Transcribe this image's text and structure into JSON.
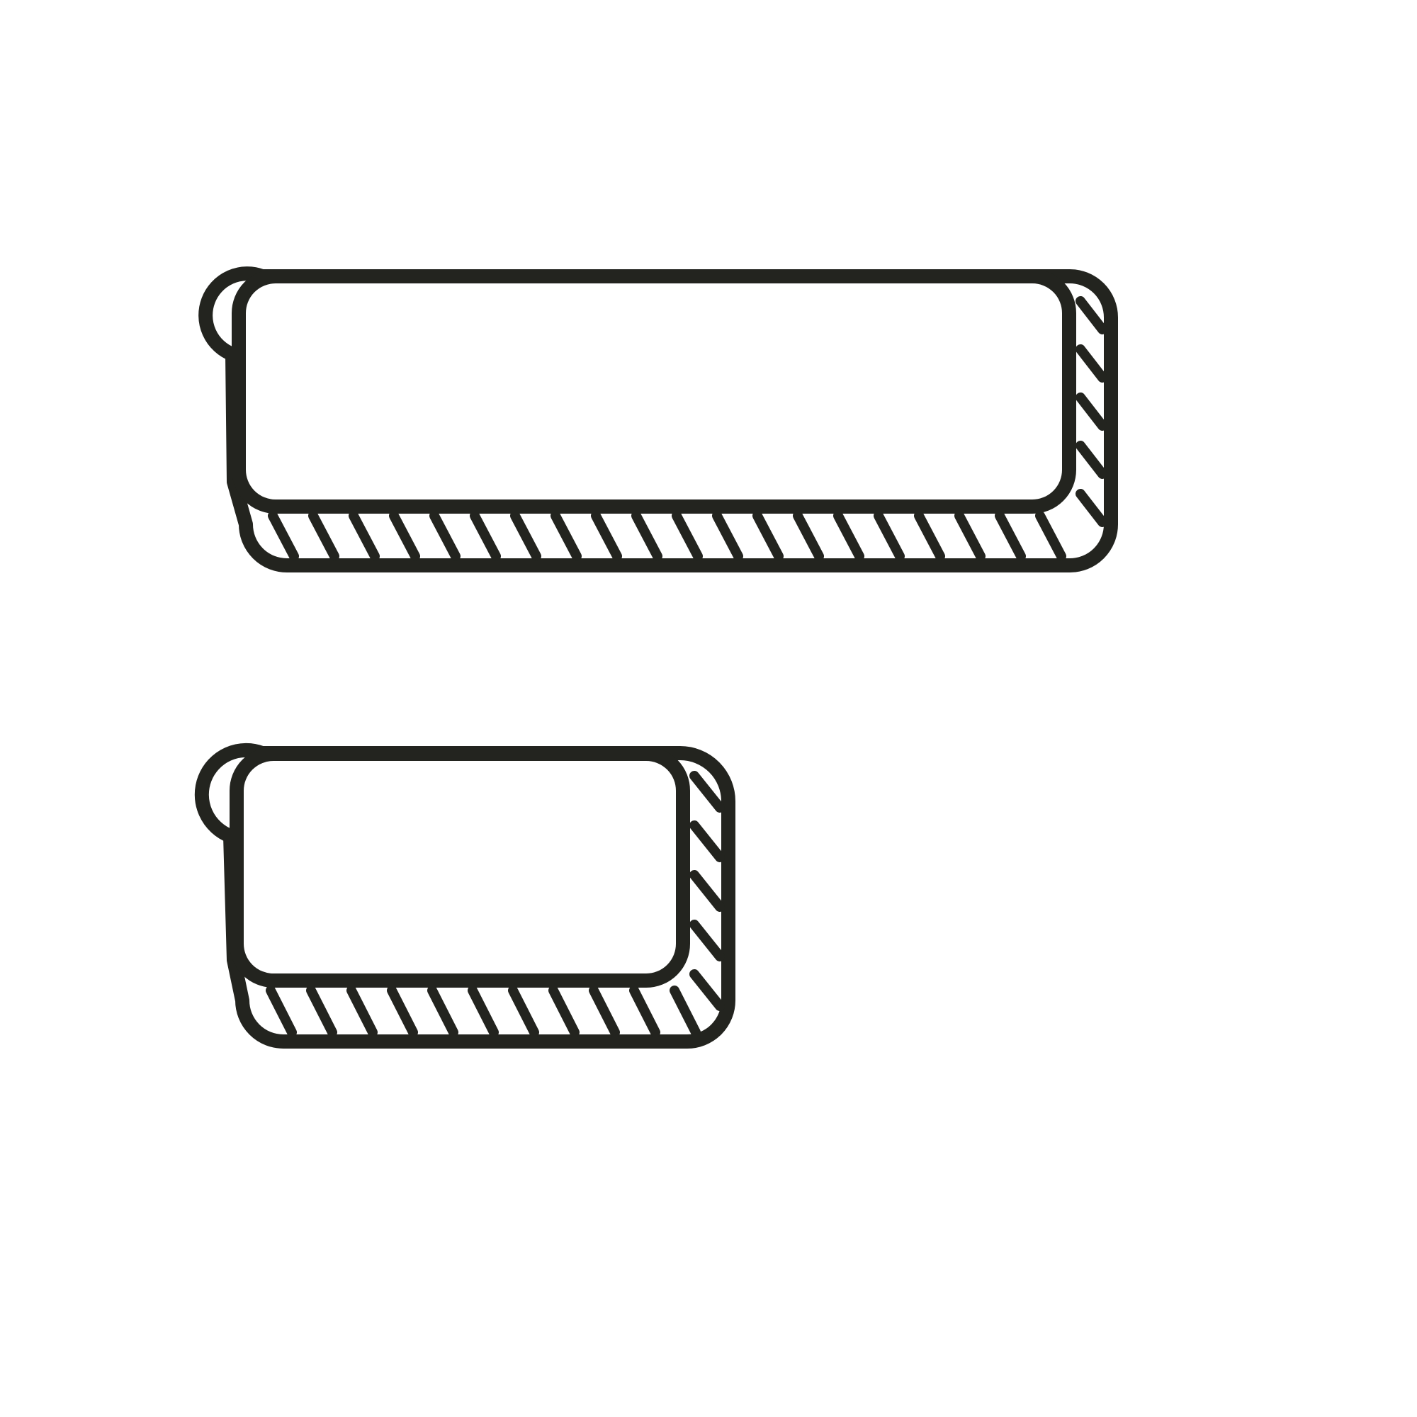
{
  "colors": {
    "background": "#ffffff",
    "stroke": "#23241f",
    "fill": "#ffffff"
  },
  "shapes": [
    {
      "name": "wide-button-outline",
      "hatch": "shadow-hatch"
    },
    {
      "name": "narrow-button-outline",
      "hatch": "shadow-hatch"
    }
  ]
}
